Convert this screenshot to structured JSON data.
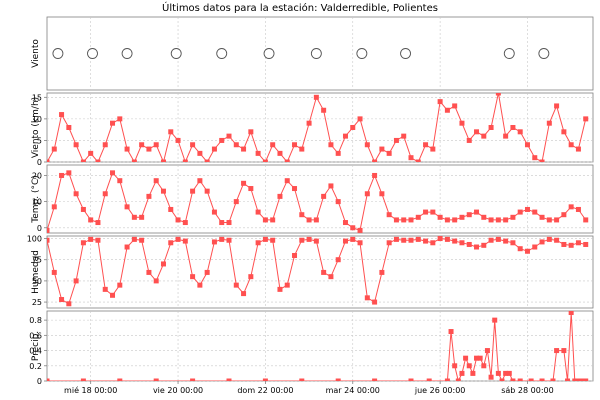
{
  "chart_data": {
    "type": "line",
    "title": "Últimos datos para la estación: Valderredible, Polientes",
    "x_ticks": [
      "mié 18 00:00",
      "vie 20 00:00",
      "dom 22 00:00",
      "mar 24 00:00",
      "jue 26 00:00",
      "sáb 28 00:00"
    ],
    "x_tick_hours": [
      24,
      72,
      120,
      168,
      216,
      264
    ],
    "xlim_hours": [
      0,
      300
    ],
    "grid": true,
    "color": "#ff5050",
    "panels": [
      {
        "id": "viento-dir",
        "ylabel": "Viento",
        "type": "scatter",
        "marker": "circle",
        "yticks": [],
        "ylim": [
          0,
          1
        ],
        "x_hours": [
          6,
          25,
          44,
          71,
          96,
          122,
          148,
          173,
          197,
          254,
          273
        ],
        "y": [
          0.5,
          0.5,
          0.5,
          0.5,
          0.5,
          0.5,
          0.5,
          0.5,
          0.5,
          0.5,
          0.5
        ]
      },
      {
        "id": "viento-vel",
        "ylabel": "Viento (km/h)",
        "type": "line",
        "yticks": [
          0,
          5,
          10,
          15
        ],
        "ylim": [
          0,
          16
        ],
        "x_hours": [
          0,
          4,
          8,
          12,
          16,
          20,
          24,
          28,
          32,
          36,
          40,
          44,
          48,
          52,
          56,
          60,
          64,
          68,
          72,
          76,
          80,
          84,
          88,
          92,
          96,
          100,
          104,
          108,
          112,
          116,
          120,
          124,
          128,
          132,
          136,
          140,
          144,
          148,
          152,
          156,
          160,
          164,
          168,
          172,
          176,
          180,
          184,
          188,
          192,
          196,
          200,
          204,
          208,
          212,
          216,
          220,
          224,
          228,
          232,
          236,
          240,
          244,
          248,
          252,
          256,
          260,
          264,
          268,
          272,
          276,
          280,
          284,
          288,
          292,
          296
        ],
        "y": [
          0,
          3,
          11,
          8,
          4,
          0,
          2,
          0,
          4,
          9,
          10,
          3,
          0,
          4,
          3,
          4,
          0,
          7,
          5,
          0,
          4,
          2,
          0,
          3,
          5,
          6,
          4,
          3,
          7,
          2,
          0,
          4,
          2,
          0,
          4,
          3,
          9,
          15,
          12,
          4,
          2,
          6,
          8,
          10,
          4,
          0,
          3,
          2,
          5,
          6,
          1,
          0,
          4,
          3,
          14,
          12,
          13,
          9,
          5,
          7,
          6,
          8,
          16,
          6,
          8,
          7,
          4,
          1,
          0,
          9,
          13,
          7,
          4,
          3,
          10
        ]
      },
      {
        "id": "temp",
        "ylabel": "Temp. (°C)",
        "type": "line",
        "yticks": [
          0,
          10,
          20
        ],
        "ylim": [
          -2,
          24
        ],
        "x_hours": [
          0,
          4,
          8,
          12,
          16,
          20,
          24,
          28,
          32,
          36,
          40,
          44,
          48,
          52,
          56,
          60,
          64,
          68,
          72,
          76,
          80,
          84,
          88,
          92,
          96,
          100,
          104,
          108,
          112,
          116,
          120,
          124,
          128,
          132,
          136,
          140,
          144,
          148,
          152,
          156,
          160,
          164,
          168,
          172,
          176,
          180,
          184,
          188,
          192,
          196,
          200,
          204,
          208,
          212,
          216,
          220,
          224,
          228,
          232,
          236,
          240,
          244,
          248,
          252,
          256,
          260,
          264,
          268,
          272,
          276,
          280,
          284,
          288,
          292,
          296
        ],
        "y": [
          -1,
          8,
          20,
          21,
          13,
          7,
          3,
          2,
          13,
          21,
          18,
          8,
          4,
          4,
          12,
          18,
          14,
          7,
          3,
          2,
          14,
          18,
          14,
          6,
          2,
          2,
          10,
          17,
          15,
          6,
          3,
          3,
          12,
          18,
          15,
          5,
          3,
          3,
          12,
          16,
          10,
          2,
          0,
          -1,
          13,
          20,
          13,
          5,
          3,
          3,
          3,
          4,
          6,
          6,
          4,
          3,
          3,
          4,
          5,
          6,
          4,
          3,
          3,
          3,
          4,
          6,
          7,
          6,
          4,
          3,
          3,
          5,
          8,
          7,
          3
        ]
      },
      {
        "id": "humedad",
        "ylabel": "Humedad",
        "type": "line",
        "yticks": [
          25,
          50,
          75,
          100
        ],
        "ylim": [
          18,
          103
        ],
        "x_hours": [
          0,
          4,
          8,
          12,
          16,
          20,
          24,
          28,
          32,
          36,
          40,
          44,
          48,
          52,
          56,
          60,
          64,
          68,
          72,
          76,
          80,
          84,
          88,
          92,
          96,
          100,
          104,
          108,
          112,
          116,
          120,
          124,
          128,
          132,
          136,
          140,
          144,
          148,
          152,
          156,
          160,
          164,
          168,
          172,
          176,
          180,
          184,
          188,
          192,
          196,
          200,
          204,
          208,
          212,
          216,
          220,
          224,
          228,
          232,
          236,
          240,
          244,
          248,
          252,
          256,
          260,
          264,
          268,
          272,
          276,
          280,
          284,
          288,
          292,
          296
        ],
        "y": [
          98,
          60,
          28,
          23,
          50,
          95,
          99,
          98,
          40,
          33,
          45,
          90,
          99,
          98,
          60,
          50,
          70,
          95,
          99,
          97,
          55,
          45,
          60,
          96,
          99,
          98,
          45,
          35,
          55,
          95,
          99,
          98,
          40,
          45,
          80,
          98,
          99,
          97,
          60,
          55,
          75,
          97,
          99,
          95,
          30,
          25,
          60,
          95,
          99,
          98,
          98,
          99,
          97,
          95,
          100,
          99,
          97,
          95,
          93,
          90,
          92,
          98,
          99,
          97,
          95,
          88,
          85,
          90,
          96,
          99,
          98,
          93,
          92,
          95,
          93
        ]
      },
      {
        "id": "precip",
        "ylabel": "Precip.",
        "type": "line",
        "yticks": [
          0,
          0.2,
          0.4,
          0.6,
          0.8
        ],
        "ylim": [
          0,
          0.92
        ],
        "x_hours": [
          0,
          20,
          40,
          60,
          80,
          100,
          120,
          140,
          160,
          180,
          200,
          210,
          220,
          222,
          224,
          226,
          228,
          230,
          232,
          234,
          236,
          238,
          240,
          242,
          244,
          246,
          248,
          250,
          252,
          254,
          256,
          260,
          266,
          272,
          278,
          280,
          284,
          286,
          288,
          290,
          292,
          294,
          296
        ],
        "y": [
          0,
          0,
          0,
          0,
          0,
          0,
          0,
          0,
          0,
          0,
          0,
          0,
          0,
          0.65,
          0.2,
          0,
          0.1,
          0.3,
          0.2,
          0.1,
          0.3,
          0.3,
          0.2,
          0.4,
          0.05,
          0.8,
          0.1,
          0,
          0.1,
          0.1,
          0,
          0,
          0,
          0,
          0,
          0.4,
          0.4,
          0,
          0.9,
          0,
          0,
          0,
          0
        ]
      }
    ]
  }
}
